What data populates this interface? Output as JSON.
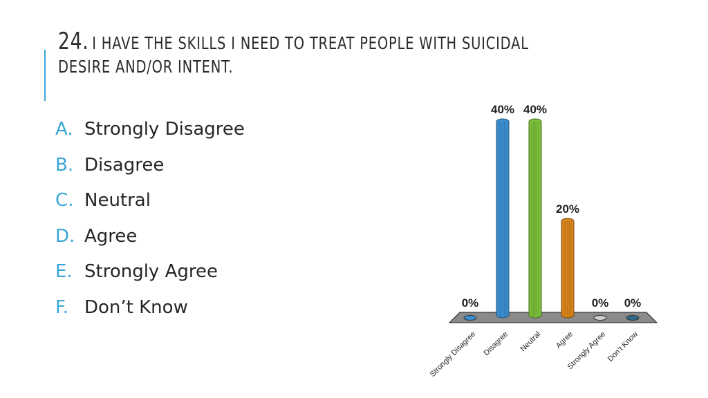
{
  "slide": {
    "number": "24.",
    "title_line1": "I have the skills I need to treat people with suicidal",
    "title_line2": "desire and/or intent."
  },
  "options": [
    {
      "letter": "A.",
      "text": "Strongly Disagree"
    },
    {
      "letter": "B.",
      "text": "Disagree"
    },
    {
      "letter": "C.",
      "text": "Neutral"
    },
    {
      "letter": "D.",
      "text": "Agree"
    },
    {
      "letter": "E.",
      "text": "Strongly Agree"
    },
    {
      "letter": "F.",
      "text": "Don’t Know"
    }
  ],
  "chart_data": {
    "type": "bar",
    "categories": [
      "Strongly Disagree",
      "Disagree",
      "Neutral",
      "Agree",
      "Strongly Agree",
      "Don’t Know"
    ],
    "values": [
      0,
      40,
      40,
      20,
      0,
      0
    ],
    "value_labels": [
      "0%",
      "40%",
      "40%",
      "20%",
      "0%",
      "0%"
    ],
    "colors": [
      "#3a8fd0",
      "#3a8fd0",
      "#7bbf3a",
      "#d8851b",
      "#d0d0d0",
      "#2f6a8a"
    ],
    "ylim": [
      0,
      40
    ],
    "grid": false,
    "legend": "none"
  },
  "colors": {
    "accent": "#3aa6d8",
    "floor": "#8a8a8a"
  }
}
